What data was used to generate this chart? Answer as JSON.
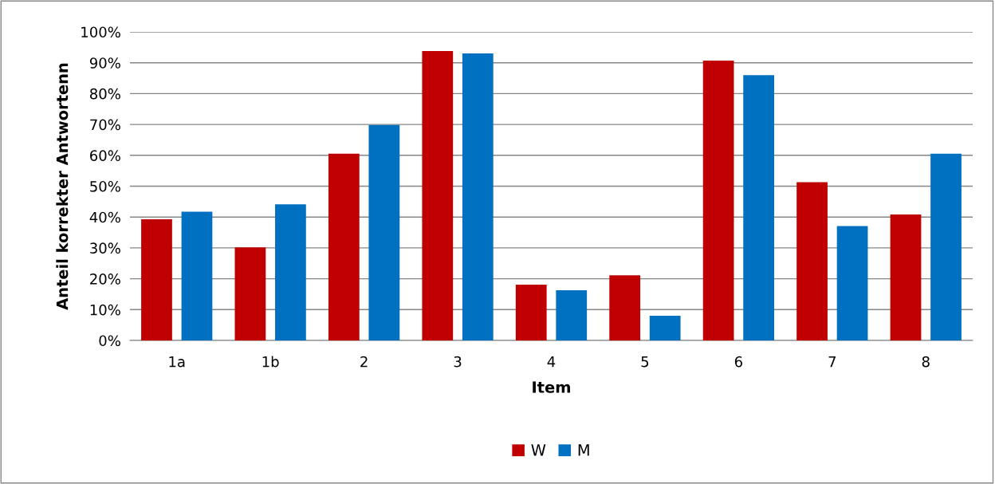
{
  "chart_data": {
    "type": "bar",
    "xlabel": "Item",
    "ylabel": "Anteil korrekter Antwortenn",
    "categories": [
      "1a",
      "1b",
      "2",
      "3",
      "4",
      "5",
      "6",
      "7",
      "8"
    ],
    "series": [
      {
        "name": "W",
        "color": "#c00000",
        "values": [
          39.3,
          30.2,
          60.5,
          93.8,
          18.1,
          21.1,
          90.7,
          51.3,
          40.8
        ]
      },
      {
        "name": "M",
        "color": "#0070c0",
        "values": [
          41.7,
          44.1,
          69.8,
          93.0,
          16.3,
          8.0,
          86.0,
          37.1,
          60.5
        ]
      }
    ],
    "ylim": [
      0,
      100
    ],
    "yticks": [
      {
        "value": 0,
        "label": "0%"
      },
      {
        "value": 10,
        "label": "10%"
      },
      {
        "value": 20,
        "label": "20%"
      },
      {
        "value": 30,
        "label": "30%"
      },
      {
        "value": 40,
        "label": "40%"
      },
      {
        "value": 50,
        "label": "50%"
      },
      {
        "value": 60,
        "label": "60%"
      },
      {
        "value": 70,
        "label": "70%"
      },
      {
        "value": 80,
        "label": "80%"
      },
      {
        "value": 90,
        "label": "90%"
      },
      {
        "value": 100,
        "label": "100%"
      }
    ],
    "grid": "y",
    "legend": "bottom"
  }
}
